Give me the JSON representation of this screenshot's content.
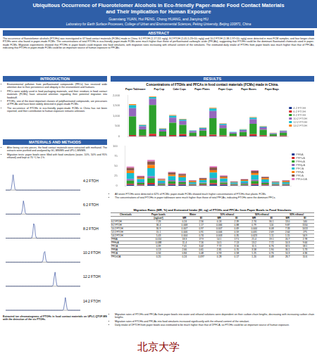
{
  "header": {
    "title": "Ubiquitous Occurrence of Fluorotelomer Alcohols in Eco-friendly Paper-made Food Contact Materials and Their Implication for Human Exposure",
    "authors": "Guanxiang YUAN, Hui PENG, Chong HUANG, and Jianying HU",
    "affiliation": "Laboratory for Earth Surface Processes, College of Urban and Environmental Sciences, Peking University, Beijing 100871, China"
  },
  "abstract": {
    "heading": "ABSTRACT",
    "text": "The occurrence of fluorotelomer alcohols (FTOHs) was investigated in 67 food contact materials (FCMs) made in China. 6:2 FTOH (1.17-111 ng/g), 8:2 FTOH (1.05-5.23×10³ ng/g) and 10:2 FTOH (1.38-1.97×10³ ng/g) were detected in most FCM samples, and four longer-chain FTOHs were also found in paper-made FCMs. The concentrations of total FTOHs in eco-friendly paper-made FCMs were much higher than those of perfluorinated carboxylic acids (PFCAs), suggesting that FTOHs could be the dominant fluorinated chemicals used in paper-made FCMs. Migration experiments showed that FTOHs in paper bowls could migrate into food simulants, with migration rates increasing with ethanol content of the simulants. The estimated daily intake of FTOHs from paper bowls was much higher than that of PFCAs, indicating that FTOHs in paper-made FCMs could be an important source of human exposure to PFCAs."
  },
  "introduction": {
    "heading": "INTRODUCTION",
    "bullets": [
      "Environmental pollution from perfluorinated compounds (PFCs) has received wide attention due to their persistence and ubiquity in the environment and humans.",
      "PFCs were widely used in food packaging materials, and their residues in food contact materials (FCMs) have attracted attention regarding their potential migration into foodstuff.",
      "FTOHs, one of the most important classes of polyfluorinated compounds, are precursors of PFCAs and have been widely detected in paper-made FCMs.",
      "The occurrence of FTOHs in eco-friendly paper-made FCMs in China has not been reported, and their contribution to human exposure remains unknown."
    ]
  },
  "methods": {
    "heading": "MATERIALS AND METHODS",
    "bullets": [
      "After being cut into pieces, the food contact materials were extracted with methanol. The extracts were purified and analyzed by GC-MS/MS and UPLC-MS/MS.",
      "Migration tests: paper bowls were filled with food simulants (water, 10%, 50% and 95% ethanol) and kept at 70 °C for 2 h."
    ]
  },
  "chromatograms": {
    "time_range": [
      2,
      12
    ],
    "traces": [
      {
        "label": "4:2 FTOH",
        "peak_time": 3.0,
        "height": 0.9
      },
      {
        "label": "6:2 FTOH",
        "peak_time": 4.4,
        "height": 0.8
      },
      {
        "label": "8:2 FTOH",
        "peak_time": 5.8,
        "height": 0.95
      },
      {
        "label": "10:2 FTOH",
        "peak_time": 7.2,
        "height": 0.7
      },
      {
        "label": "12:2 FTOH",
        "peak_time": 8.6,
        "height": 0.85
      },
      {
        "label": "14:2 FTOH",
        "peak_time": 10.0,
        "height": 0.75
      }
    ],
    "caption": "Extracted ion chromatograms of FTOHs in food contact materials on UPLC-QTOF-MS with the detection of the six FTOHs."
  },
  "results": {
    "heading": "RESULTS",
    "bullets_top": [
      "All seven FTOHs were detected in 62% of FCMs; paper-made FCMs showed much higher concentrations of FTOHs than plastic FCMs.",
      "The concentrations of total FTOHs in paper tableware were much higher than those of total PFCAs, indicating FTOHs were the dominant PFCs."
    ],
    "bullets_bottom": [
      "Migration rates of FTOHs and PFCAs from paper bowls into water and ethanol solutions were dependent on their carbon chain lengths, decreasing with increasing carbon chain lengths.",
      "Migration rates of FTOHs and PFCAs into food simulants increased significantly with the ethanol content of the simulant.",
      "Daily intake of ΣFTOH from paper bowls was estimated to be much higher than that of ΣPFCA, so FTOHs could be an important source of human exposure."
    ]
  },
  "chart_data": [
    {
      "type": "bar",
      "title": "Concentrations of FTOHs and PFCAs in food contact materials (FCMs) made in China.",
      "annotations": [
        "Paper Tableware",
        "Pop Cup",
        "Cake Cups",
        "Paper Plates",
        "Paper Cups",
        "Paper Boxes",
        "Paper Bags"
      ],
      "stacked": true,
      "legend": "right",
      "grid": false,
      "tick_labels": "y",
      "categories": [
        null,
        null,
        null,
        null,
        null,
        null,
        null,
        null,
        null,
        null,
        null,
        null,
        null,
        null,
        null,
        null
      ],
      "ylim": [
        0,
        2000
      ],
      "yticks": [
        0,
        500,
        1000,
        1500,
        2000
      ],
      "series": [
        {
          "name": "4:2 FTOH",
          "color": "#1f3a93",
          "values": [
            10,
            5,
            20,
            8,
            12,
            30,
            6,
            4,
            15,
            9,
            3,
            7,
            22,
            11,
            5,
            8
          ]
        },
        {
          "name": "6:2 FTOH",
          "color": "#d62728",
          "values": [
            60,
            40,
            110,
            30,
            55,
            80,
            20,
            25,
            70,
            45,
            15,
            30,
            90,
            50,
            20,
            35
          ]
        },
        {
          "name": "8:2 FTOH",
          "color": "#2ca02c",
          "values": [
            900,
            300,
            1400,
            200,
            600,
            450,
            150,
            250,
            800,
            350,
            120,
            180,
            500,
            260,
            90,
            140
          ]
        },
        {
          "name": "10:2 FTOH",
          "color": "#9467bd",
          "values": [
            400,
            150,
            300,
            100,
            250,
            200,
            80,
            100,
            350,
            150,
            60,
            90,
            220,
            120,
            40,
            70
          ]
        },
        {
          "name": "12:2 FTOH",
          "color": "#17becf",
          "values": [
            150,
            60,
            80,
            40,
            90,
            70,
            30,
            40,
            120,
            60,
            20,
            30,
            80,
            40,
            15,
            25
          ]
        },
        {
          "name": "14:2 FTOH",
          "color": "#ff7f0e",
          "values": [
            50,
            20,
            30,
            15,
            30,
            25,
            10,
            15,
            40,
            20,
            8,
            10,
            30,
            15,
            5,
            10
          ]
        }
      ]
    },
    {
      "type": "bar",
      "stacked": true,
      "legend": "right",
      "grid": false,
      "tick_labels": "y",
      "categories": [
        null,
        null,
        null,
        null,
        null,
        null,
        null,
        null,
        null,
        null,
        null,
        null,
        null,
        null,
        null,
        null
      ],
      "ylim": [
        0,
        100
      ],
      "yticks": [
        0,
        25,
        50,
        75,
        100
      ],
      "series": [
        {
          "name": "PFBA",
          "color": "#1f3a93",
          "values": [
            2,
            1,
            3,
            1,
            2,
            2,
            1,
            1,
            3,
            2,
            1,
            1,
            2,
            1,
            1,
            1
          ]
        },
        {
          "name": "PFPeA",
          "color": "#d62728",
          "values": [
            3,
            2,
            4,
            1,
            3,
            2,
            1,
            2,
            3,
            2,
            1,
            1,
            3,
            2,
            1,
            1
          ]
        },
        {
          "name": "PFHxA",
          "color": "#2ca02c",
          "values": [
            8,
            4,
            12,
            3,
            6,
            5,
            2,
            3,
            9,
            4,
            2,
            3,
            7,
            4,
            2,
            2
          ]
        },
        {
          "name": "PFHpA",
          "color": "#9467bd",
          "values": [
            4,
            2,
            5,
            2,
            3,
            3,
            1,
            2,
            4,
            2,
            1,
            2,
            3,
            2,
            1,
            1
          ]
        },
        {
          "name": "PFOA",
          "color": "#17becf",
          "values": [
            15,
            8,
            20,
            6,
            10,
            9,
            4,
            6,
            14,
            8,
            3,
            5,
            12,
            7,
            3,
            4
          ]
        },
        {
          "name": "PFNA",
          "color": "#ff7f0e",
          "values": [
            6,
            3,
            8,
            2,
            4,
            4,
            2,
            2,
            6,
            3,
            1,
            2,
            5,
            3,
            1,
            2
          ]
        },
        {
          "name": "PFDA",
          "color": "#8c564b",
          "values": [
            7,
            3,
            9,
            2,
            5,
            4,
            2,
            3,
            7,
            3,
            1,
            2,
            5,
            3,
            1,
            2
          ]
        },
        {
          "name": "PFUnDA",
          "color": "#e377c2",
          "values": [
            3,
            2,
            4,
            1,
            2,
            2,
            1,
            1,
            3,
            2,
            1,
            1,
            2,
            1,
            1,
            1
          ]
        }
      ]
    }
  ],
  "table": {
    "title": "Migration Rates (MR, %) and Estimated Intake (EI, ng) of FTOHs and PFCAs from Paper Bowls to Food Simulants",
    "header1": [
      "Chemicals",
      "Paper bowls",
      "Water",
      "10% ethanol",
      "50% ethanol",
      "95% ethanol"
    ],
    "header2": [
      "",
      "(ng/cm²)",
      "MR",
      "EI",
      "MR",
      "EI",
      "MR",
      "EI",
      "MR",
      "EI"
    ],
    "rows": [
      [
        "6:2 FTOH",
        "7.26",
        "0.24",
        "2.56",
        "0.24",
        "2.39",
        "2.74",
        "30.1",
        "13.0",
        "140"
      ],
      [
        "8:2 FTOH",
        "36.4",
        "0.068",
        "1.17",
        "0.066",
        "0.88",
        "0.79",
        "124",
        "9.87",
        "1550"
      ],
      [
        "10:2 FTOH",
        "30.9",
        "0.007",
        "0.97",
        "0.007",
        "0.69",
        "0.044",
        "6.08",
        "7.33",
        "1013"
      ],
      [
        "12:2 FTOH",
        "15.1",
        "0.006",
        "0.91",
        "0.006",
        "0.59",
        "0.031",
        "2.69",
        "2.64",
        "275"
      ],
      [
        "14:2 FTOH",
        "5.43",
        "0.004",
        "0.74",
        "0.003",
        "0.35",
        "0.023",
        "1.11",
        "1.15",
        "54.9"
      ],
      [
        "PFBA",
        "0.010",
        "18.3",
        "17.9",
        "14.1",
        "17.5",
        "21.4",
        "19.1",
        "20.7",
        "2.78"
      ],
      [
        "PFHxA",
        "0.088",
        "11.4",
        "7.16",
        "10.5",
        "7.13",
        "13.2",
        "7.72",
        "10.3",
        "9.64"
      ],
      [
        "PFOA",
        "0.39",
        "7.41",
        "3.42",
        "7.72",
        "3.16",
        "11.5",
        "6.76",
        "32.5",
        "18.1"
      ],
      [
        "PFNA",
        "0.13",
        "2.66",
        "0.61",
        "2.81",
        "0.70",
        "3.58",
        "1.90",
        "30.1",
        "5.73"
      ],
      [
        "PFDA",
        "0.34",
        "0.84",
        "0.48",
        "0.93",
        "0.58",
        "1.25",
        "0.76",
        "10.3",
        "4.36"
      ],
      [
        "PFUnDA",
        "0.20",
        "0.24",
        "0.097",
        "0.28",
        "0.17",
        "1.20",
        "0.48",
        "26.7",
        "10.6"
      ]
    ]
  },
  "footer": {
    "logo": "北京大学"
  }
}
